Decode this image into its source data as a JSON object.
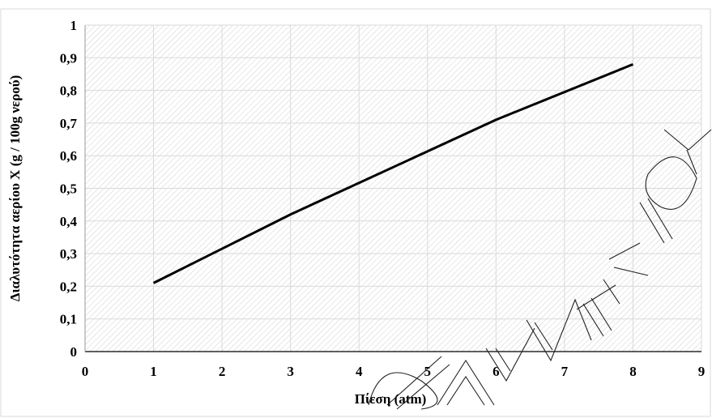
{
  "chart_data": {
    "type": "line",
    "title": "",
    "xlabel": "Πίεση (atm)",
    "ylabel": "Διαλυτότητα αερίου X (g / 100g νερού)",
    "xlim": [
      0,
      9
    ],
    "ylim": [
      0,
      1
    ],
    "x_ticks": [
      "0",
      "1",
      "2",
      "3",
      "4",
      "5",
      "6",
      "7",
      "8",
      "9"
    ],
    "y_ticks": [
      "0",
      "0,1",
      "0,2",
      "0,3",
      "0,4",
      "0,5",
      "0,6",
      "0,7",
      "0,8",
      "0,9",
      "1"
    ],
    "grid": true,
    "background": "hatched",
    "series": [
      {
        "x": [
          1,
          3,
          6,
          8
        ],
        "y": [
          0.21,
          0.42,
          0.71,
          0.88
        ],
        "color": "#000000"
      }
    ]
  },
  "watermark": {
    "text": "ΟΞΑΚΛΕΙΟΥ",
    "color": "#222222"
  },
  "colors": {
    "grid": "#d9d9d9",
    "hatch": "#cfcfcf",
    "axis": "#000000"
  }
}
